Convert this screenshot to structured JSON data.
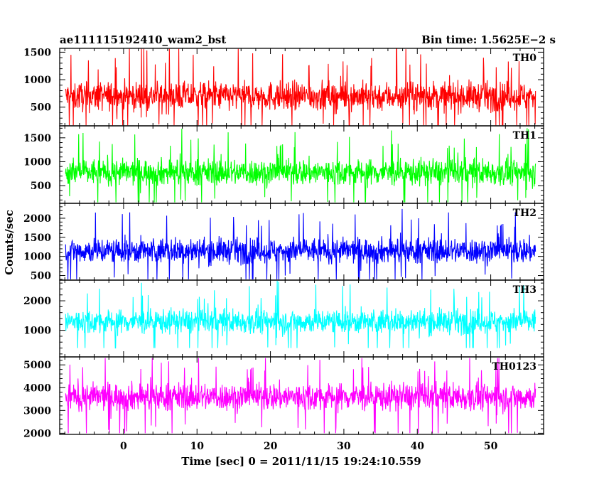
{
  "header": {
    "title_left": "ae111115192410_wam2_bst",
    "title_right": "Bin time: 1.5625E−2 s"
  },
  "axes": {
    "xlabel": "Time [sec] 0 = 2011/11/15 19:24:10.559",
    "ylabel": "Counts/sec"
  },
  "chart_data": {
    "type": "line",
    "title": "ae111115192410_wam2_bst",
    "subtitle": "Bin time: 1.5625E−2 s",
    "xlabel": "Time [sec] 0 = 2011/11/15 19:24:10.559",
    "ylabel": "Counts/sec",
    "xlim": [
      -8.7,
      57.2
    ],
    "x_range": [
      -7.9,
      56.1
    ],
    "bin_time": 0.015625,
    "x_ticks": [
      0,
      10,
      20,
      30,
      40,
      50
    ],
    "x_tick_labels": [
      "0",
      "10",
      "20",
      "30",
      "40",
      "50"
    ],
    "panels": [
      {
        "name": "TH0",
        "color": "#ff0000",
        "ylim": [
          160,
          1570
        ],
        "y_ticks": [
          500,
          1000,
          1500
        ],
        "y_tick_labels": [
          "500",
          "1000",
          "1500"
        ],
        "typical_range": [
          250,
          1200
        ],
        "mean": 700,
        "min": 170,
        "max": 1560
      },
      {
        "name": "TH1",
        "color": "#00ff00",
        "ylim": [
          130,
          1750
        ],
        "y_ticks": [
          500,
          1000,
          1500
        ],
        "y_tick_labels": [
          "500",
          "1000",
          "1500"
        ],
        "typical_range": [
          300,
          1300
        ],
        "mean": 780,
        "min": 150,
        "max": 1720
      },
      {
        "name": "TH2",
        "color": "#0000ff",
        "ylim": [
          380,
          2390
        ],
        "y_ticks": [
          500,
          1000,
          1500,
          2000
        ],
        "y_tick_labels": [
          "500",
          "1000",
          "1500",
          "2000"
        ],
        "typical_range": [
          600,
          1800
        ],
        "mean": 1150,
        "min": 400,
        "max": 2380
      },
      {
        "name": "TH3",
        "color": "#00ffff",
        "ylim": [
          100,
          2700
        ],
        "y_ticks": [
          1000,
          2000
        ],
        "y_tick_labels": [
          "1000",
          "2000"
        ],
        "typical_range": [
          700,
          2200
        ],
        "mean": 1300,
        "min": 400,
        "max": 2680
      },
      {
        "name": "TH0123",
        "color": "#ff00ff",
        "ylim": [
          1950,
          5350
        ],
        "y_ticks": [
          2000,
          3000,
          4000,
          5000
        ],
        "y_tick_labels": [
          "2000",
          "3000",
          "4000",
          "5000"
        ],
        "typical_range": [
          2500,
          4700
        ],
        "mean": 3600,
        "min": 2000,
        "max": 5300
      }
    ]
  }
}
